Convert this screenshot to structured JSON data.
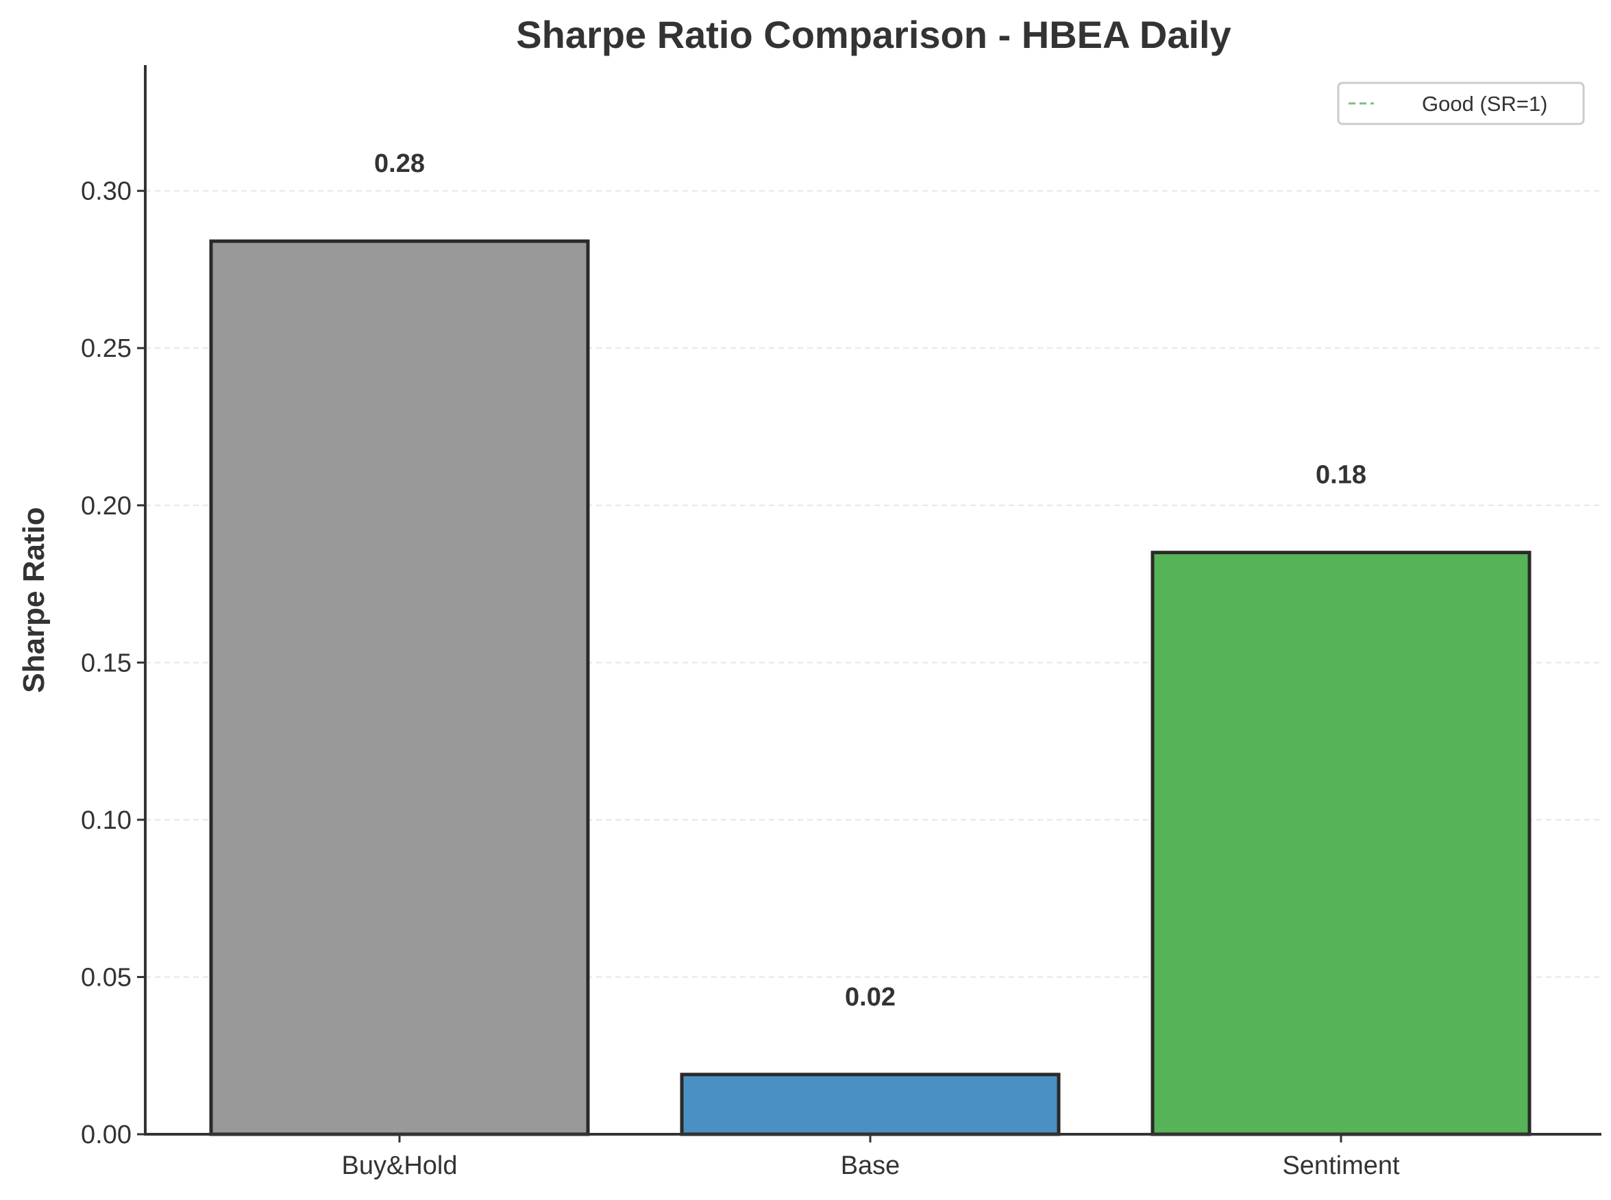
{
  "chart_data": {
    "type": "bar",
    "title": "Sharpe Ratio Comparison - HBEA Daily",
    "xlabel": "",
    "ylabel": "Sharpe Ratio",
    "categories": [
      "Buy&Hold",
      "Base",
      "Sentiment"
    ],
    "values": [
      0.284,
      0.019,
      0.185
    ],
    "value_labels": [
      "0.28",
      "0.02",
      "0.18"
    ],
    "colors": [
      "#999999",
      "#4a90c2",
      "#57b357"
    ],
    "edge_color": "#2a2a2a",
    "ylim": [
      0,
      0.34
    ],
    "yticks": [
      0.0,
      0.05,
      0.1,
      0.15,
      0.2,
      0.25,
      0.3
    ],
    "ytick_labels": [
      "0.00",
      "0.05",
      "0.10",
      "0.15",
      "0.20",
      "0.25",
      "0.30"
    ],
    "grid": true,
    "legend": {
      "placement": "top-right",
      "entries": [
        {
          "label": "Good (SR=1)",
          "style": "dashed",
          "color": "#7cbf7c"
        }
      ]
    }
  }
}
